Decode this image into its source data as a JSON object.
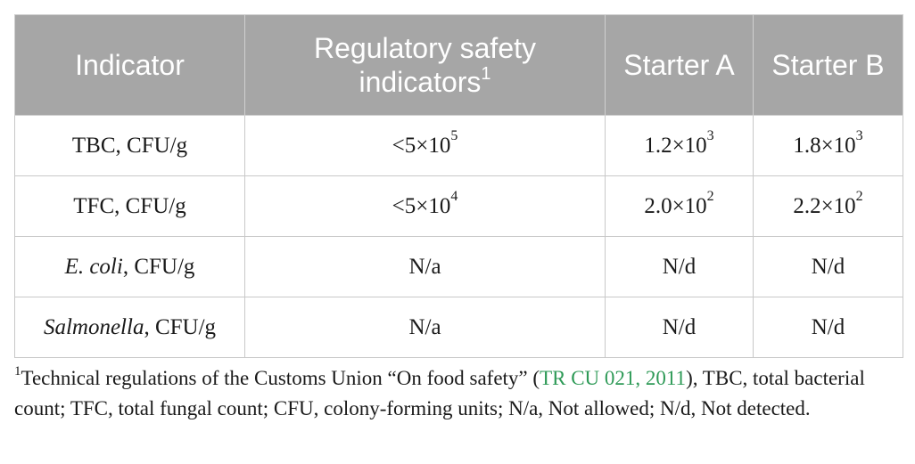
{
  "table": {
    "headers": {
      "indicator": "Indicator",
      "regulatory": "Regulatory safety indicators",
      "regulatory_footnote_mark": "1",
      "starter_a": "Starter A",
      "starter_b": "Starter B"
    },
    "rows": [
      {
        "label_italic": "",
        "label": "TBC, CFU/g",
        "regulatory": {
          "base": "<5×10",
          "exp": "5"
        },
        "starter_a": {
          "base": "1.2×10",
          "exp": "3"
        },
        "starter_b": {
          "base": "1.8×10",
          "exp": "3"
        }
      },
      {
        "label_italic": "",
        "label": "TFC, CFU/g",
        "regulatory": {
          "base": "<5×10",
          "exp": "4"
        },
        "starter_a": {
          "base": "2.0×10",
          "exp": "2"
        },
        "starter_b": {
          "base": "2.2×10",
          "exp": "2"
        }
      },
      {
        "label_italic": "E. coli",
        "label": ", CFU/g",
        "regulatory": {
          "base": "N/a",
          "exp": ""
        },
        "starter_a": {
          "base": "N/d",
          "exp": ""
        },
        "starter_b": {
          "base": "N/d",
          "exp": ""
        }
      },
      {
        "label_italic": "Salmonella",
        "label": ", CFU/g",
        "regulatory": {
          "base": "N/a",
          "exp": ""
        },
        "starter_a": {
          "base": "N/d",
          "exp": ""
        },
        "starter_b": {
          "base": "N/d",
          "exp": ""
        }
      }
    ]
  },
  "footnote": {
    "mark": "1",
    "text_before": "Technical regulations of the Customs Union “On food safety” (",
    "link": "TR CU 021, 2011",
    "text_after": "), TBC, total bacterial count; TFC, total fungal count; CFU, colony-forming units; N/a, Not allowed; N/d, Not detected.",
    "link_color": "#2e9a57"
  },
  "colors": {
    "header_bg": "#a6a6a6",
    "header_text": "#ffffff"
  }
}
